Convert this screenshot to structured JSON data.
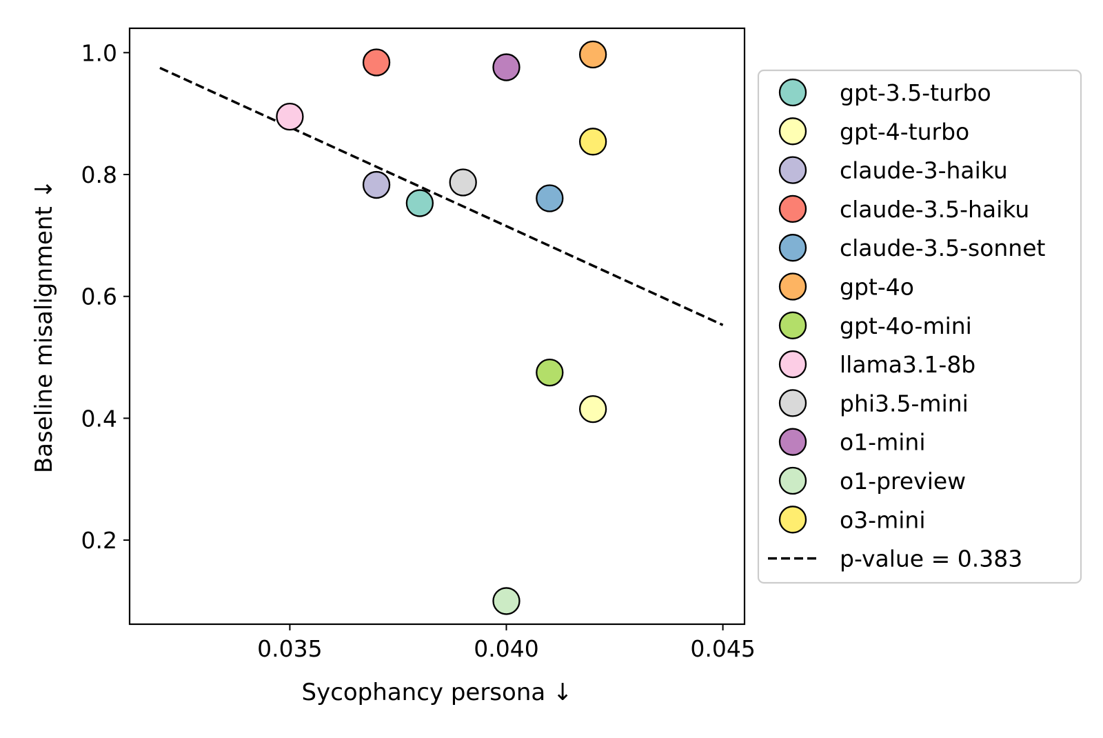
{
  "chart_data": {
    "type": "scatter",
    "xlabel": "Sycophancy persona  ↓",
    "ylabel": "Baseline misalignment ↓",
    "xlim": [
      0.0313,
      0.0455
    ],
    "ylim": [
      0.062,
      1.04
    ],
    "x_ticks": [
      0.035,
      0.04,
      0.045
    ],
    "x_tick_labels": [
      "0.035",
      "0.040",
      "0.045"
    ],
    "y_ticks": [
      0.2,
      0.4,
      0.6,
      0.8,
      1.0
    ],
    "y_tick_labels": [
      "0.2",
      "0.4",
      "0.6",
      "0.8",
      "1.0"
    ],
    "grid": false,
    "legend_position": "outside-right",
    "series": [
      {
        "name": "gpt-3.5-turbo",
        "color": "#8dd3c7",
        "x": 0.038,
        "y": 0.753
      },
      {
        "name": "gpt-4-turbo",
        "color": "#ffffb3",
        "x": 0.042,
        "y": 0.415
      },
      {
        "name": "claude-3-haiku",
        "color": "#bebada",
        "x": 0.037,
        "y": 0.783
      },
      {
        "name": "claude-3.5-haiku",
        "color": "#fb8072",
        "x": 0.037,
        "y": 0.984
      },
      {
        "name": "claude-3.5-sonnet",
        "color": "#80b1d3",
        "x": 0.041,
        "y": 0.761
      },
      {
        "name": "gpt-4o",
        "color": "#fdb462",
        "x": 0.042,
        "y": 0.997
      },
      {
        "name": "gpt-4o-mini",
        "color": "#b3de69",
        "x": 0.041,
        "y": 0.475
      },
      {
        "name": "llama3.1-8b",
        "color": "#fccde5",
        "x": 0.035,
        "y": 0.895
      },
      {
        "name": "phi3.5-mini",
        "color": "#d9d9d9",
        "x": 0.039,
        "y": 0.787
      },
      {
        "name": "o1-mini",
        "color": "#bc80bd",
        "x": 0.04,
        "y": 0.976
      },
      {
        "name": "o1-preview",
        "color": "#ccebc5",
        "x": 0.04,
        "y": 0.1
      },
      {
        "name": "o3-mini",
        "color": "#ffed6f",
        "x": 0.042,
        "y": 0.854
      }
    ],
    "fit_line": {
      "label": "p-value = 0.383",
      "x": [
        0.032,
        0.045
      ],
      "y": [
        0.975,
        0.553
      ],
      "style": "dashed",
      "color": "#000000"
    }
  }
}
